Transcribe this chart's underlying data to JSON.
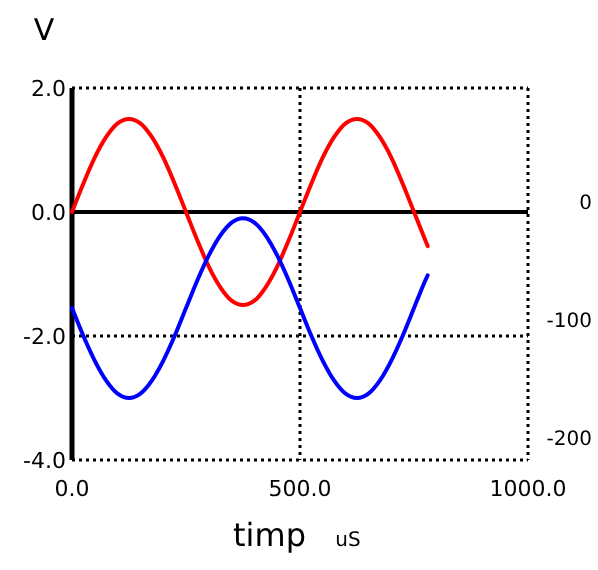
{
  "chart_data": {
    "type": "line",
    "ylabel": "V",
    "xlabel": "timp",
    "annotations": [
      "uS"
    ],
    "x": [
      0,
      25,
      50,
      75,
      100,
      125,
      150,
      175,
      200,
      225,
      250,
      275,
      300,
      325,
      350,
      375,
      400,
      425,
      450,
      475,
      500,
      525,
      550,
      575,
      600,
      625,
      650,
      675,
      700,
      725,
      750,
      775,
      780
    ],
    "series": [
      {
        "color": "#ff0000",
        "values": [
          0,
          0.46,
          0.88,
          1.21,
          1.43,
          1.5,
          1.43,
          1.21,
          0.88,
          0.46,
          0,
          -0.46,
          -0.88,
          -1.21,
          -1.43,
          -1.5,
          -1.43,
          -1.21,
          -0.88,
          -0.46,
          0,
          0.46,
          0.88,
          1.21,
          1.43,
          1.5,
          1.43,
          1.21,
          0.88,
          0.46,
          0,
          -0.46,
          -0.55
        ]
      },
      {
        "color": "#0000ff",
        "values": [
          -1.55,
          -2.0,
          -2.4,
          -2.72,
          -2.93,
          -3.0,
          -2.93,
          -2.72,
          -2.4,
          -2.0,
          -1.55,
          -1.1,
          -0.7,
          -0.38,
          -0.17,
          -0.1,
          -0.17,
          -0.38,
          -0.7,
          -1.1,
          -1.55,
          -2.0,
          -2.4,
          -2.72,
          -2.93,
          -3.0,
          -2.93,
          -2.72,
          -2.4,
          -2.0,
          -1.55,
          -1.1,
          -1.02
        ]
      }
    ],
    "xlim": [
      0,
      1000
    ],
    "xticks": [
      {
        "value": 0,
        "label": "0.0"
      },
      {
        "value": 500,
        "label": "500.0"
      },
      {
        "value": 1000,
        "label": "1000.0"
      }
    ],
    "ylim": [
      -4,
      2
    ],
    "yticks": [
      {
        "value": 2,
        "label": "2.0"
      },
      {
        "value": 0,
        "label": "0.0"
      },
      {
        "value": -2,
        "label": "-2.0"
      },
      {
        "value": -4,
        "label": "-4.0"
      }
    ],
    "y2lim": [
      -219,
      97
    ],
    "y2ticks": [
      0,
      -100,
      -200
    ],
    "ref_lines": [
      {
        "axis": "y",
        "value": 0,
        "color": "#000000",
        "line_style": "solid"
      }
    ],
    "grid": true,
    "line_style": "solid",
    "marker": "none"
  }
}
